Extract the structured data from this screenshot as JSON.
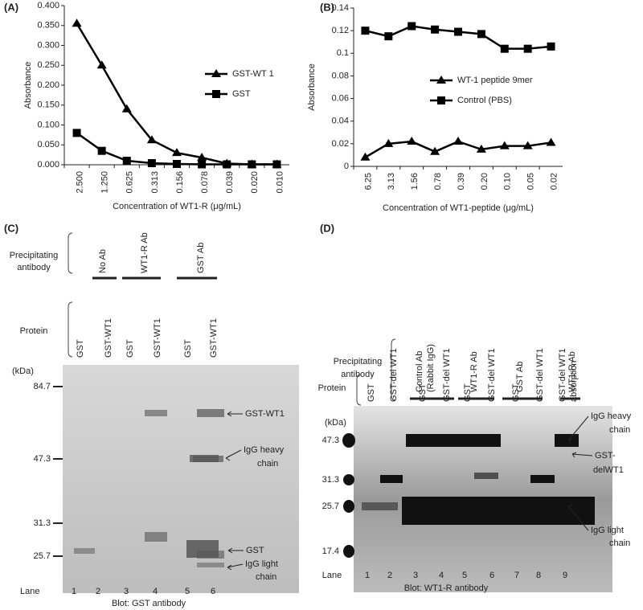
{
  "chart_data": [
    {
      "type": "line",
      "label": "(A)",
      "ylabel": "Absorbance",
      "xlabel": "Concentration of WT1-R (μg/mL)",
      "categories": [
        "2.500",
        "1.250",
        "0.625",
        "0.313",
        "0.156",
        "0.078",
        "0.039",
        "0.020",
        "0.010"
      ],
      "series": [
        {
          "name": "GST-WT 1",
          "color": "#000000",
          "marker": "triangle",
          "values": [
            0.355,
            0.25,
            0.14,
            0.062,
            0.03,
            0.018,
            0.003,
            0.001,
            0.001
          ]
        },
        {
          "name": "GST",
          "color": "#000000",
          "marker": "square",
          "values": [
            0.08,
            0.035,
            0.01,
            0.004,
            0.002,
            0.001,
            0.001,
            0.001,
            0.001
          ]
        }
      ],
      "ylim": [
        0,
        0.4
      ],
      "yticks": [
        {
          "value": 0,
          "label": "0.000"
        },
        {
          "value": 0.05,
          "label": "0.050"
        },
        {
          "value": 0.1,
          "label": "0.100"
        },
        {
          "value": 0.15,
          "label": "0.150"
        },
        {
          "value": 0.2,
          "label": "0.200"
        },
        {
          "value": 0.25,
          "label": "0.250"
        },
        {
          "value": 0.3,
          "label": "0.300"
        },
        {
          "value": 0.35,
          "label": "0.350"
        },
        {
          "value": 0.4,
          "label": "0.400"
        }
      ],
      "legend": "right"
    },
    {
      "type": "line",
      "label": "(B)",
      "ylabel": "Absorbance",
      "xlabel": "Concentration of WT1-peptide (μg/mL)",
      "categories": [
        "6.25",
        "3.13",
        "1.56",
        "0.78",
        "0.39",
        "0.20",
        "0.10",
        "0.05",
        "0.02"
      ],
      "series": [
        {
          "name": "WT-1 peptide 9mer",
          "color": "#000000",
          "marker": "triangle",
          "values": [
            0.008,
            0.02,
            0.022,
            0.013,
            0.022,
            0.015,
            0.018,
            0.018,
            0.021
          ]
        },
        {
          "name": "Control  (PBS)",
          "color": "#000000",
          "marker": "square",
          "values": [
            0.12,
            0.115,
            0.124,
            0.121,
            0.119,
            0.117,
            0.104,
            0.104,
            0.106
          ]
        }
      ],
      "ylim": [
        0,
        0.14
      ],
      "yticks": [
        0,
        0.02,
        0.04,
        0.06,
        0.08,
        0.1,
        0.12,
        0.14
      ],
      "legend": "center"
    }
  ],
  "panels": {
    "C": {
      "label": "(C)",
      "precipitating": [
        "Precipitating",
        "antibody"
      ],
      "antibodies": [
        "No Ab",
        "WT1-R Ab",
        "GST Ab"
      ],
      "protein_label": "Protein",
      "proteins": [
        "GST",
        "GST-WT1",
        "GST",
        "GST-WT1",
        "GST",
        "GST-WT1"
      ],
      "kda_label": "(kDa)",
      "markers": [
        "84.7",
        "47.3",
        "31.3",
        "25.7"
      ],
      "band_labels": [
        "GST-WT1",
        "IgG  heavy",
        "chain",
        "GST",
        "IgG  light",
        "chain"
      ],
      "lane_label": "Lane",
      "lanes": [
        "1",
        "2",
        "3",
        "4",
        "5",
        "6"
      ],
      "blot": "Blot: GST antibody"
    },
    "D": {
      "label": "(D)",
      "precipitating": [
        "Precipitating",
        "antibody"
      ],
      "antibodies": [
        [
          "Control Ab",
          "(Rabbit IgG)"
        ],
        [
          "WT1-R Ab"
        ],
        [
          "GST Ab"
        ],
        [
          "WT1-R Ab"
        ]
      ],
      "protein_label": "Protein",
      "proteins": [
        [
          "GST"
        ],
        [
          "GST-del WT1"
        ],
        [
          "GST"
        ],
        [
          "GST-del WT1"
        ],
        [
          "GST"
        ],
        [
          "GST-del WT1"
        ],
        [
          "GST"
        ],
        [
          "GST-del WT1"
        ],
        [
          "GST-del WT1",
          "absorption"
        ]
      ],
      "kda_label": "(kDa)",
      "markers": [
        "47.3",
        "31.3",
        "25.7",
        "17.4"
      ],
      "band_labels": [
        "IgG  heavy",
        "chain",
        "GST-",
        "delWT1",
        "IgG  light",
        "chain"
      ],
      "lane_label": "Lane",
      "lanes": [
        "1",
        "2",
        "3",
        "4",
        "5",
        "6",
        "7",
        "8",
        "9"
      ],
      "blot": "Blot: WT1-R antibody"
    }
  }
}
